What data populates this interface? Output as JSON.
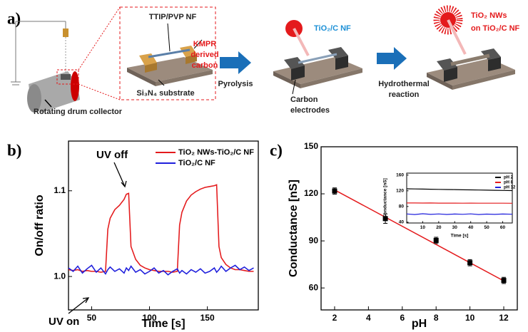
{
  "figure_a": {
    "label": "a)",
    "drum_label": "Rotating drum collector",
    "nf_label": "TTIP/PVP NF",
    "kmpr_label": [
      "KMPR",
      "derived",
      "carbon"
    ],
    "substrate_label": "Si₃N₄ substrate",
    "step1": "Pyrolysis",
    "tio2c_label": "TiO₂/C NF",
    "electrodes_label": [
      "Carbon",
      "electrodes"
    ],
    "step2": [
      "Hydrothermal",
      "reaction"
    ],
    "nws_label": [
      "TiO₂ NWs",
      "on TiO₂/C NF"
    ]
  },
  "chart_data": [
    {
      "type": "line",
      "panel_label": "b)",
      "xlabel": "Time [s]",
      "ylabel": "On/off ratio",
      "x": [
        30,
        34,
        38,
        42,
        46,
        50,
        54,
        58,
        62,
        64,
        66,
        70,
        74,
        78,
        80,
        82,
        84,
        88,
        92,
        96,
        100,
        104,
        108,
        112,
        116,
        120,
        124,
        126,
        128,
        132,
        136,
        140,
        144,
        148,
        152,
        156,
        158,
        160,
        162,
        166,
        170,
        174,
        178,
        182,
        186,
        190
      ],
      "series": [
        {
          "name": "TiO₂ NWs-TiO₂/C NF",
          "color": "#e41a1c",
          "values": [
            1.008,
            1.007,
            1.008,
            1.006,
            1.007,
            1.006,
            1.006,
            1.005,
            1.006,
            1.055,
            1.068,
            1.078,
            1.083,
            1.09,
            1.096,
            1.097,
            1.035,
            1.02,
            1.013,
            1.01,
            1.008,
            1.007,
            1.006,
            1.006,
            1.006,
            1.005,
            1.006,
            1.06,
            1.075,
            1.088,
            1.095,
            1.099,
            1.102,
            1.104,
            1.105,
            1.106,
            1.107,
            1.035,
            1.022,
            1.014,
            1.01,
            1.008,
            1.008,
            1.007,
            1.006,
            1.006
          ]
        },
        {
          "name": "TiO₂/C NF",
          "color": "#1f1fdc",
          "values": [
            1.01,
            1.006,
            1.012,
            1.004,
            1.009,
            1.013,
            1.005,
            1.01,
            1.003,
            1.008,
            1.011,
            1.006,
            1.009,
            1.004,
            1.01,
            1.007,
            1.012,
            1.005,
            1.008,
            1.003,
            1.006,
            1.01,
            1.004,
            1.007,
            1.002,
            1.006,
            1.009,
            1.004,
            1.007,
            1.003,
            1.008,
            1.005,
            1.009,
            1.004,
            1.006,
            1.01,
            1.005,
            1.008,
            1.012,
            1.006,
            1.01,
            1.013,
            1.008,
            1.011,
            1.007,
            1.01
          ]
        }
      ],
      "xlim": [
        30,
        194
      ],
      "ylim": [
        0.961,
        1.158
      ],
      "xticks": [
        50,
        100,
        150
      ],
      "yticks": [
        {
          "value": 1,
          "label": "1.0"
        },
        {
          "value": 1.1,
          "label": "1.1"
        }
      ],
      "legend": "upper right",
      "annotations": [
        "UV off",
        "UV on"
      ]
    },
    {
      "type": "scatter",
      "panel_label": "c)",
      "xlabel": "pH",
      "ylabel": "Conductance [nS]",
      "x": [
        2,
        5,
        8,
        10,
        12
      ],
      "series": [
        {
          "color": "#000000",
          "values": [
            121.8,
            104.2,
            90.3,
            76.1,
            64.8
          ],
          "errors": [
            2,
            3,
            2,
            2,
            2
          ]
        }
      ],
      "fit": {
        "x": [
          2,
          12
        ],
        "values": [
          122.5,
          64.5
        ],
        "color": "#e41a1c"
      },
      "xlim": [
        1.2,
        12.8
      ],
      "ylim": [
        46,
        150
      ],
      "xticks": [
        2,
        4,
        6,
        8,
        10,
        12
      ],
      "yticks": [
        60,
        90,
        120,
        150
      ]
    },
    {
      "type": "line",
      "xlabel": "Time [s]",
      "ylabel": "Conductance [nS]",
      "x": [
        0,
        5,
        10,
        15,
        20,
        25,
        30,
        35,
        40,
        45,
        50,
        55,
        60,
        66
      ],
      "series": [
        {
          "name": "pH 2",
          "color": "#000000",
          "values": [
            125,
            124.7,
            124.3,
            124,
            123.6,
            123.3,
            123,
            122.6,
            122.3,
            122,
            121.6,
            121.3,
            121,
            120.6
          ]
        },
        {
          "name": "pH 8",
          "color": "#e41a1c",
          "values": [
            89,
            89,
            88.8,
            88.9,
            88.7,
            88.6,
            88.7,
            88.5,
            88.6,
            88.4,
            88.5,
            88.4,
            88.4,
            88.3
          ]
        },
        {
          "name": "pH 12",
          "color": "#1f1fdc",
          "values": [
            61,
            59.5,
            61.5,
            60,
            61,
            59.8,
            60.8,
            60.2,
            61.2,
            59.6,
            60.6,
            60,
            60.9,
            60.3
          ]
        }
      ],
      "xlim": [
        0,
        66
      ],
      "ylim": [
        38,
        165
      ],
      "xticks": [
        10,
        20,
        30,
        40,
        50,
        60
      ],
      "yticks": [
        40,
        80,
        120,
        160
      ],
      "legend": "upper right"
    }
  ]
}
